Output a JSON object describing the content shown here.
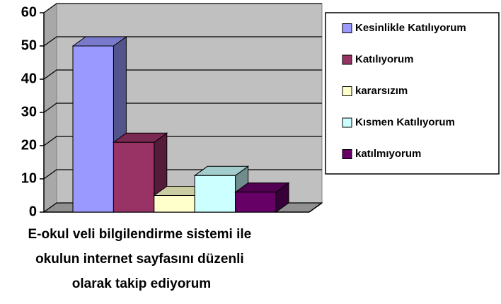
{
  "chart_data": {
    "type": "bar3d",
    "categories": [
      "E-okul veli bilgilendirme sistemi ile okulun internet sayfasını düzenli olarak takip ediyorum"
    ],
    "series": [
      {
        "name": "Kesinlikle Katılıyorum",
        "color": "#9999ff",
        "values": [
          50
        ]
      },
      {
        "name": "Katılıyorum",
        "color": "#993366",
        "values": [
          21
        ]
      },
      {
        "name": "kararsızım",
        "color": "#ffffcc",
        "values": [
          5
        ]
      },
      {
        "name": "Kısmen Katılıyorum",
        "color": "#ccffff",
        "values": [
          11
        ]
      },
      {
        "name": "katılmıyorum",
        "color": "#660066",
        "values": [
          6
        ]
      }
    ],
    "ylim": [
      0,
      60
    ],
    "yticks": [
      0,
      10,
      20,
      30,
      40,
      50,
      60
    ],
    "grid": true,
    "legend": "right"
  }
}
